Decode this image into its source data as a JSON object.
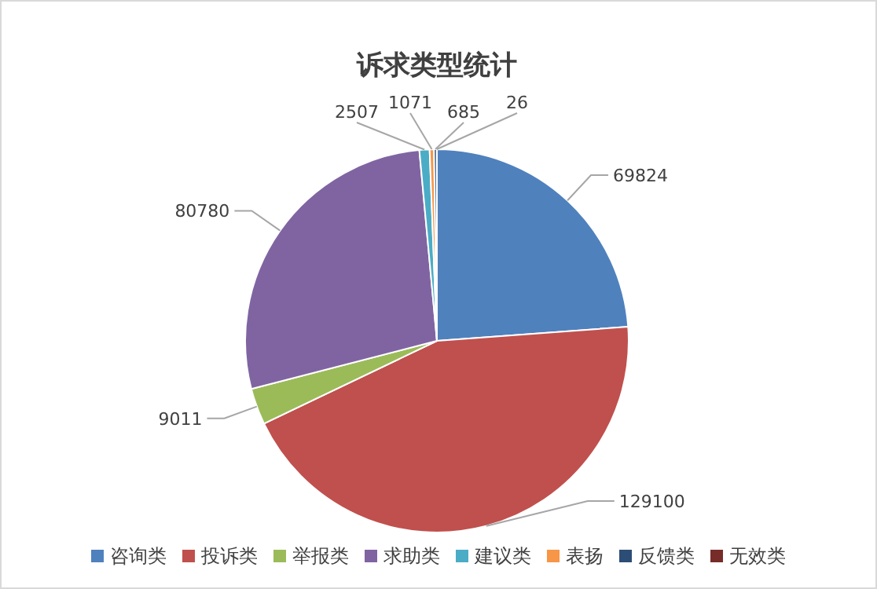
{
  "chart_data": {
    "type": "pie",
    "title": "诉求类型统计",
    "categories": [
      "咨询类",
      "投诉类",
      "举报类",
      "求助类",
      "建议类",
      "表扬",
      "反馈类",
      "无效类"
    ],
    "values": [
      69824,
      129100,
      9011,
      80780,
      2507,
      1071,
      685,
      26
    ],
    "colors": [
      "#4f81bd",
      "#c0504d",
      "#9bbb59",
      "#8064a2",
      "#4bacc6",
      "#f79646",
      "#2c4d75",
      "#772c2a"
    ],
    "data_labels": true,
    "legend": "bottom"
  }
}
